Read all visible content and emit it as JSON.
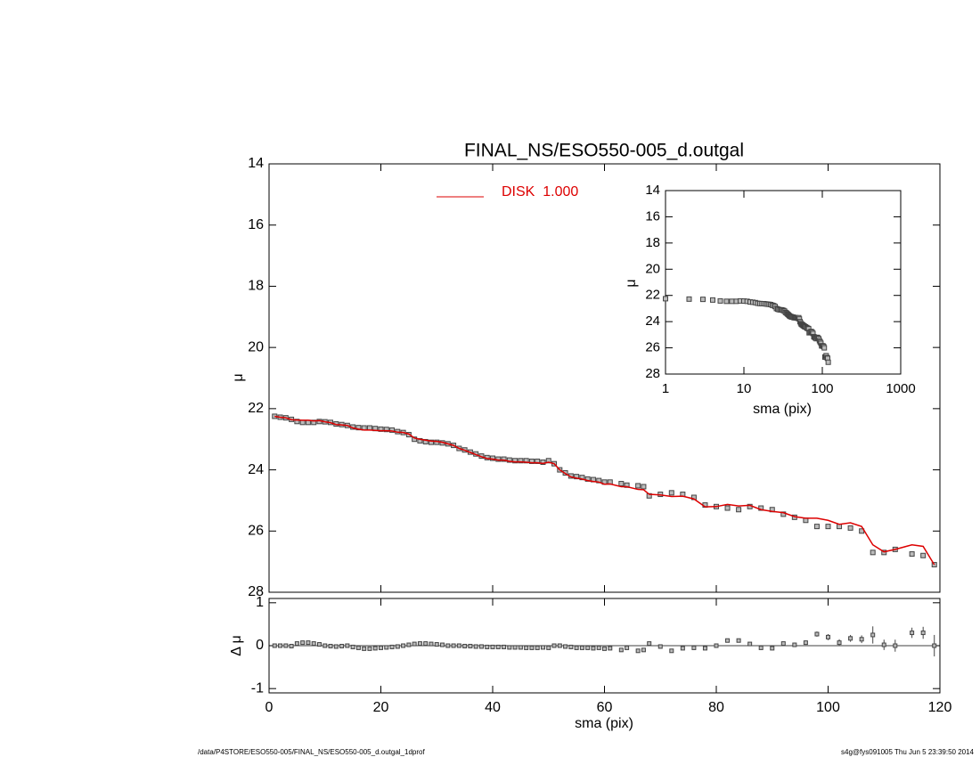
{
  "chart_data": [
    {
      "type": "scatter",
      "title": "FINAL_NS/ESO550-005_d.outgal",
      "ylabel": "μ",
      "x": [
        1,
        2,
        3,
        4,
        5,
        6,
        7,
        8,
        9,
        10,
        11,
        12,
        13,
        14,
        15,
        16,
        17,
        18,
        19,
        20,
        21,
        22,
        23,
        24,
        25,
        26,
        27,
        28,
        29,
        30,
        31,
        32,
        33,
        34,
        35,
        36,
        37,
        38,
        39,
        40,
        41,
        42,
        43,
        44,
        45,
        46,
        47,
        48,
        49,
        50,
        51,
        52,
        53,
        54,
        55,
        56,
        57,
        58,
        59,
        60,
        61,
        63,
        64,
        66,
        67,
        68,
        70,
        72,
        74,
        76,
        78,
        80,
        82,
        84,
        86,
        88,
        90,
        92,
        94,
        96,
        98,
        100,
        102,
        104,
        106,
        108,
        110,
        112,
        115,
        117,
        119
      ],
      "series": [
        {
          "style": "markers",
          "color": "#444444",
          "values": [
            22.25,
            22.28,
            22.3,
            22.35,
            22.42,
            22.45,
            22.45,
            22.45,
            22.42,
            22.43,
            22.45,
            22.5,
            22.52,
            22.55,
            22.6,
            22.62,
            22.63,
            22.63,
            22.65,
            22.67,
            22.68,
            22.7,
            22.75,
            22.78,
            22.85,
            23.0,
            23.05,
            23.08,
            23.1,
            23.1,
            23.12,
            23.15,
            23.2,
            23.3,
            23.35,
            23.42,
            23.48,
            23.55,
            23.6,
            23.62,
            23.65,
            23.65,
            23.68,
            23.7,
            23.7,
            23.7,
            23.72,
            23.72,
            23.75,
            23.7,
            23.8,
            24.0,
            24.1,
            24.2,
            24.22,
            24.25,
            24.3,
            24.32,
            24.35,
            24.4,
            24.4,
            24.45,
            24.5,
            24.52,
            24.55,
            24.85,
            24.8,
            24.75,
            24.8,
            24.9,
            25.15,
            25.2,
            25.25,
            25.3,
            25.2,
            25.25,
            25.3,
            25.45,
            25.55,
            25.65,
            25.85,
            25.85,
            25.85,
            25.9,
            26.0,
            26.7,
            26.7,
            26.6,
            26.75,
            26.8,
            27.1
          ]
        },
        {
          "name": "DISK  1.000",
          "style": "line",
          "color": "#dd0000",
          "values": [
            22.25,
            22.28,
            22.3,
            22.36,
            22.37,
            22.38,
            22.38,
            22.4,
            22.39,
            22.43,
            22.46,
            22.52,
            22.53,
            22.55,
            22.63,
            22.67,
            22.7,
            22.7,
            22.71,
            22.72,
            22.72,
            22.73,
            22.77,
            22.78,
            22.83,
            22.96,
            23.0,
            23.03,
            23.06,
            23.07,
            23.1,
            23.15,
            23.2,
            23.3,
            23.36,
            23.43,
            23.5,
            23.57,
            23.63,
            23.65,
            23.68,
            23.68,
            23.72,
            23.74,
            23.74,
            23.75,
            23.77,
            23.77,
            23.79,
            23.75,
            23.8,
            24.0,
            24.12,
            24.23,
            24.27,
            24.3,
            24.35,
            24.38,
            24.4,
            24.47,
            24.46,
            24.55,
            24.55,
            24.64,
            24.65,
            24.8,
            24.82,
            24.87,
            24.86,
            24.95,
            25.21,
            25.2,
            25.13,
            25.18,
            25.16,
            25.3,
            25.36,
            25.4,
            25.53,
            25.58,
            25.58,
            25.65,
            25.78,
            25.73,
            25.85,
            26.45,
            26.68,
            26.6,
            26.45,
            26.5,
            27.1
          ]
        }
      ],
      "xlim": [
        0,
        120
      ],
      "xticks": [
        0,
        20,
        40,
        60,
        80,
        100,
        120
      ],
      "ylim": [
        28,
        14
      ],
      "yticks": [
        14,
        16,
        18,
        20,
        22,
        24,
        26,
        28
      ],
      "legend": "top"
    },
    {
      "type": "errorbar",
      "ylabel": "Δ μ",
      "xlabel": "sma (pix)",
      "color": "#444444",
      "values": [
        0,
        0,
        0,
        -0.01,
        0.05,
        0.07,
        0.07,
        0.05,
        0.03,
        0.0,
        -0.01,
        -0.02,
        -0.01,
        0,
        -0.03,
        -0.05,
        -0.07,
        -0.07,
        -0.06,
        -0.05,
        -0.04,
        -0.03,
        -0.02,
        0.0,
        0.02,
        0.04,
        0.05,
        0.05,
        0.04,
        0.03,
        0.02,
        0.0,
        0.0,
        0.0,
        -0.01,
        -0.01,
        -0.02,
        -0.02,
        -0.03,
        -0.03,
        -0.03,
        -0.03,
        -0.04,
        -0.04,
        -0.04,
        -0.05,
        -0.05,
        -0.05,
        -0.04,
        -0.05,
        0.0,
        0.0,
        -0.02,
        -0.03,
        -0.05,
        -0.05,
        -0.05,
        -0.06,
        -0.05,
        -0.07,
        -0.06,
        -0.1,
        -0.05,
        -0.12,
        -0.1,
        0.05,
        -0.02,
        -0.12,
        -0.06,
        -0.05,
        -0.06,
        0.0,
        0.12,
        0.12,
        0.04,
        -0.05,
        -0.06,
        0.05,
        0.02,
        0.07,
        0.27,
        0.2,
        0.07,
        0.17,
        0.15,
        0.25,
        0.02,
        0.0,
        0.3,
        0.3,
        0.0
      ],
      "errors": [
        0.01,
        0.01,
        0.01,
        0.01,
        0.01,
        0.01,
        0.01,
        0.01,
        0.01,
        0.01,
        0.01,
        0.01,
        0.01,
        0.01,
        0.01,
        0.01,
        0.01,
        0.01,
        0.01,
        0.01,
        0.01,
        0.01,
        0.01,
        0.01,
        0.01,
        0.01,
        0.01,
        0.01,
        0.01,
        0.01,
        0.01,
        0.01,
        0.01,
        0.01,
        0.01,
        0.01,
        0.01,
        0.01,
        0.01,
        0.01,
        0.01,
        0.01,
        0.01,
        0.01,
        0.01,
        0.01,
        0.01,
        0.01,
        0.01,
        0.01,
        0.01,
        0.01,
        0.01,
        0.01,
        0.01,
        0.01,
        0.01,
        0.01,
        0.01,
        0.01,
        0.01,
        0.02,
        0.02,
        0.02,
        0.02,
        0.02,
        0.02,
        0.02,
        0.02,
        0.02,
        0.02,
        0.02,
        0.03,
        0.03,
        0.03,
        0.03,
        0.04,
        0.04,
        0.05,
        0.05,
        0.06,
        0.07,
        0.08,
        0.08,
        0.09,
        0.2,
        0.12,
        0.14,
        0.12,
        0.14,
        0.25
      ],
      "xlim": [
        0,
        120
      ],
      "xticks": [
        0,
        20,
        40,
        60,
        80,
        100,
        120
      ],
      "ylim": [
        -1.1,
        1.1
      ],
      "yticks": [
        -1,
        0,
        1
      ],
      "zero_line": true
    },
    {
      "type": "inset",
      "xlabel": "sma (pix)",
      "ylabel": "μ",
      "log_x": true,
      "xlim": [
        1,
        1000
      ],
      "xticks": [
        1,
        10,
        100,
        1000
      ],
      "ylim": [
        28,
        14
      ],
      "yticks": [
        14,
        16,
        18,
        20,
        22,
        24,
        26,
        28
      ]
    }
  ],
  "footer": {
    "left": "/data/P4STORE/ESO550-005/FINAL_NS/ESO550-005_d.outgal_1dprof",
    "right": "s4g@fys091005  Thu Jun  5 23:39:50 2014"
  }
}
